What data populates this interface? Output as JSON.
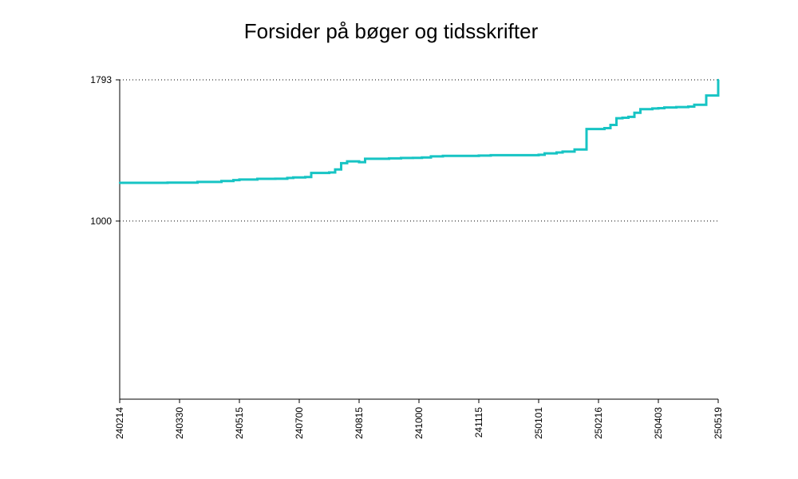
{
  "chart_data": {
    "type": "line",
    "title": "Forsider på bøger og tidsskrifter",
    "xlabel": "",
    "ylabel": "",
    "x_tick_labels": [
      "240214",
      "240330",
      "240515",
      "240700",
      "240815",
      "241000",
      "241115",
      "250101",
      "250216",
      "250403",
      "250519"
    ],
    "y_ticks": [
      1000,
      1793
    ],
    "y_tick_labels": [
      "1000",
      "1793"
    ],
    "ylim": [
      0,
      1793
    ],
    "grid": "dotted horizontal at labeled y ticks",
    "series_color": "#17c4c4",
    "series": [
      {
        "x": [
          0.0,
          0.6,
          0.8,
          1.3,
          1.7,
          1.9,
          2.0,
          2.3,
          2.6,
          2.8,
          2.9,
          3.1,
          3.2,
          3.5,
          3.6,
          3.7,
          3.8,
          4.0,
          4.1,
          4.5,
          4.7,
          4.9,
          5.05,
          5.2,
          5.4,
          6.0,
          6.2,
          7.0,
          7.1,
          7.3,
          7.4,
          7.6,
          7.8,
          8.1,
          8.2,
          8.3,
          8.4,
          8.5,
          8.6,
          8.7,
          8.9,
          9.0,
          9.1,
          9.3,
          9.5,
          9.6,
          9.8,
          10.0
        ],
        "y": [
          1215,
          1215,
          1216,
          1220,
          1225,
          1230,
          1233,
          1237,
          1238,
          1242,
          1245,
          1247,
          1270,
          1273,
          1290,
          1325,
          1335,
          1331,
          1350,
          1352,
          1354,
          1355,
          1357,
          1363,
          1366,
          1368,
          1370,
          1372,
          1380,
          1385,
          1390,
          1402,
          1517,
          1522,
          1540,
          1577,
          1580,
          1585,
          1608,
          1628,
          1632,
          1634,
          1638,
          1640,
          1643,
          1653,
          1705,
          1793
        ]
      }
    ]
  }
}
